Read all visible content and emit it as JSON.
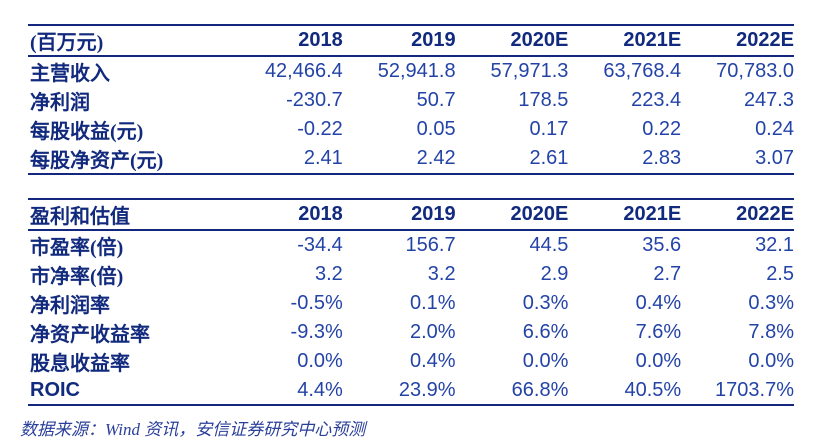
{
  "colors": {
    "rule_navy": "#14277e",
    "header_text": "#122a7d",
    "number_text": "#2343a7",
    "footer_text": "#2a3f9a",
    "background": "#ffffff"
  },
  "income_table": {
    "unit_header": "(百万元)",
    "years": [
      "2018",
      "2019",
      "2020E",
      "2021E",
      "2022E"
    ],
    "rows": [
      {
        "label": "主营收入",
        "values": [
          "42,466.4",
          "52,941.8",
          "57,971.3",
          "63,768.4",
          "70,783.0"
        ]
      },
      {
        "label": "净利润",
        "values": [
          "-230.7",
          "50.7",
          "178.5",
          "223.4",
          "247.3"
        ]
      },
      {
        "label": "每股收益(元)",
        "values": [
          "-0.22",
          "0.05",
          "0.17",
          "0.22",
          "0.24"
        ]
      },
      {
        "label": "每股净资产(元)",
        "values": [
          "2.41",
          "2.42",
          "2.61",
          "2.83",
          "3.07"
        ]
      }
    ]
  },
  "valuation_table": {
    "title_header": "盈利和估值",
    "years": [
      "2018",
      "2019",
      "2020E",
      "2021E",
      "2022E"
    ],
    "rows": [
      {
        "label": "市盈率(倍)",
        "values": [
          "-34.4",
          "156.7",
          "44.5",
          "35.6",
          "32.1"
        ]
      },
      {
        "label": "市净率(倍)",
        "values": [
          "3.2",
          "3.2",
          "2.9",
          "2.7",
          "2.5"
        ]
      },
      {
        "label": "净利润率",
        "values": [
          "-0.5%",
          "0.1%",
          "0.3%",
          "0.4%",
          "0.3%"
        ]
      },
      {
        "label": "净资产收益率",
        "values": [
          "-9.3%",
          "2.0%",
          "6.6%",
          "7.6%",
          "7.8%"
        ]
      },
      {
        "label": "股息收益率",
        "values": [
          "0.0%",
          "0.4%",
          "0.0%",
          "0.0%",
          "0.0%"
        ]
      },
      {
        "label": "ROIC",
        "values": [
          "4.4%",
          "23.9%",
          "66.8%",
          "40.5%",
          "1703.7%"
        ]
      }
    ]
  },
  "footer": {
    "source": "数据来源：Wind 资讯，安信证券研究中心预测"
  }
}
